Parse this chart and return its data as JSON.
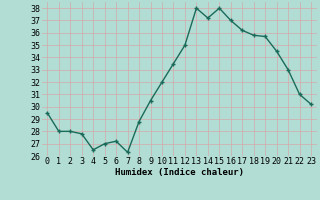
{
  "x": [
    0,
    1,
    2,
    3,
    4,
    5,
    6,
    7,
    8,
    9,
    10,
    11,
    12,
    13,
    14,
    15,
    16,
    17,
    18,
    19,
    20,
    21,
    22,
    23
  ],
  "y": [
    29.5,
    28.0,
    28.0,
    27.8,
    26.5,
    27.0,
    27.2,
    26.3,
    28.8,
    30.5,
    32.0,
    33.5,
    35.0,
    38.0,
    37.2,
    38.0,
    37.0,
    36.2,
    35.8,
    35.7,
    34.5,
    33.0,
    31.0,
    30.2
  ],
  "line_color": "#1a6b5a",
  "marker": "+",
  "marker_size": 3.5,
  "bg_color": "#b2ddd4",
  "grid_color": "#d4a8a8",
  "xlabel": "Humidex (Indice chaleur)",
  "ylim": [
    26,
    38.5
  ],
  "xlim": [
    -0.5,
    23.5
  ],
  "yticks": [
    26,
    27,
    28,
    29,
    30,
    31,
    32,
    33,
    34,
    35,
    36,
    37,
    38
  ],
  "xticks": [
    0,
    1,
    2,
    3,
    4,
    5,
    6,
    7,
    8,
    9,
    10,
    11,
    12,
    13,
    14,
    15,
    16,
    17,
    18,
    19,
    20,
    21,
    22,
    23
  ],
  "xlabel_fontsize": 6.5,
  "tick_fontsize": 6.0,
  "linewidth": 1.0,
  "marker_color": "#1a6b5a"
}
